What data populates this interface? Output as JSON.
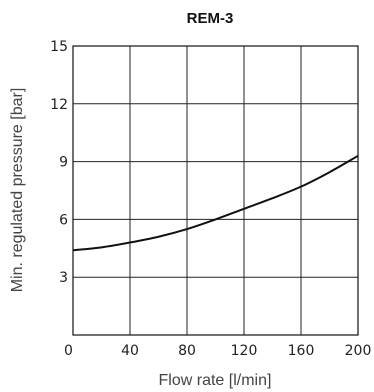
{
  "chart_data": {
    "type": "line",
    "title": "REM-3",
    "xlabel": "Flow rate [l/min]",
    "ylabel": "Min. regulated pressure [bar]",
    "xlim": [
      0,
      200
    ],
    "ylim": [
      0,
      15
    ],
    "xticks": [
      0,
      40,
      80,
      120,
      160,
      200
    ],
    "yticks": [
      3,
      6,
      9,
      12,
      15
    ],
    "xtick_labels": [
      "0",
      "40",
      "80",
      "120",
      "160",
      "200"
    ],
    "ytick_labels": [
      "3",
      "6",
      "9",
      "12",
      "15"
    ],
    "grid": true,
    "series": [
      {
        "x": [
          0,
          20,
          40,
          60,
          80,
          100,
          120,
          140,
          160,
          180,
          200
        ],
        "y": [
          4.4,
          4.55,
          4.8,
          5.1,
          5.5,
          6.0,
          6.55,
          7.1,
          7.7,
          8.45,
          9.3
        ]
      }
    ]
  }
}
